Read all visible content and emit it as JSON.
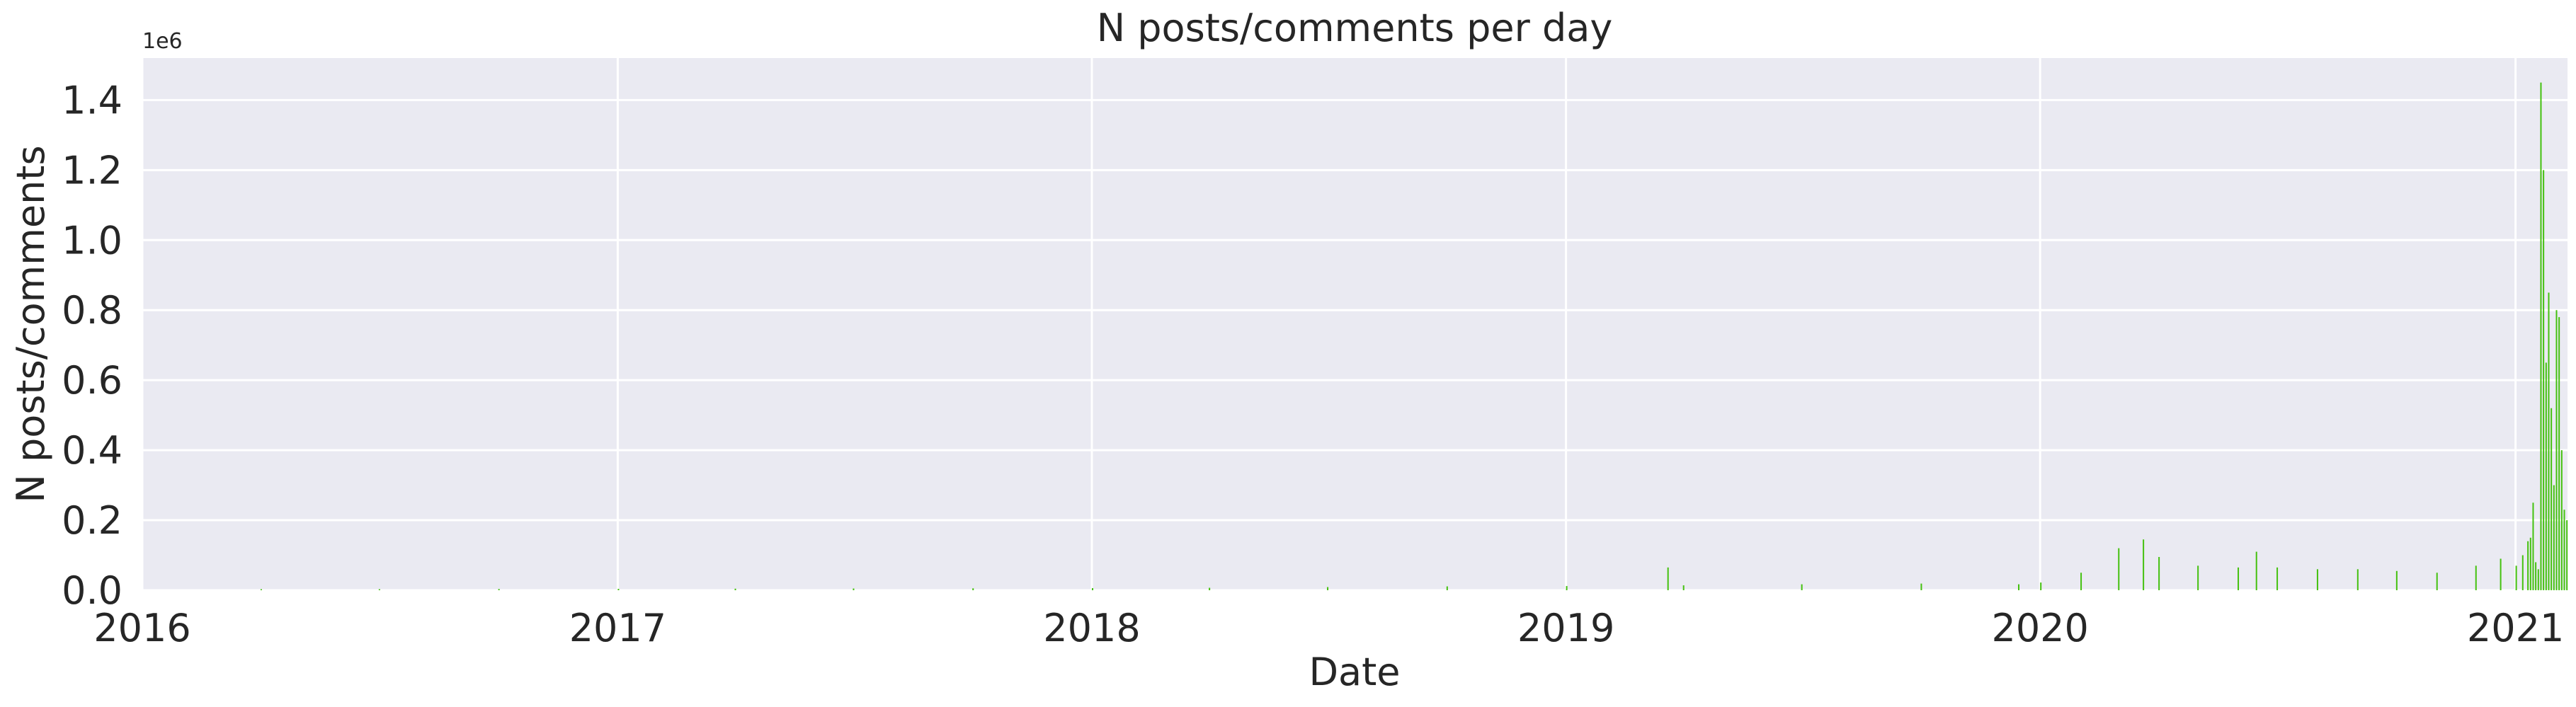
{
  "chart_data": {
    "type": "bar",
    "title": "N posts/comments per day",
    "xlabel": "Date",
    "ylabel": "N posts/comments",
    "y_offset_label": "1e6",
    "y_scale": 1000000,
    "xlim": [
      "2016-01-01",
      "2021-02-10"
    ],
    "ylim": [
      0,
      1520000
    ],
    "x_ticks": [
      {
        "date": "2016-01-01",
        "label": "2016"
      },
      {
        "date": "2017-01-01",
        "label": "2017"
      },
      {
        "date": "2018-01-01",
        "label": "2018"
      },
      {
        "date": "2019-01-01",
        "label": "2019"
      },
      {
        "date": "2020-01-01",
        "label": "2020"
      },
      {
        "date": "2021-01-01",
        "label": "2021"
      }
    ],
    "y_ticks": [
      {
        "value": 0,
        "label": "0.0"
      },
      {
        "value": 200000,
        "label": "0.2"
      },
      {
        "value": 400000,
        "label": "0.4"
      },
      {
        "value": 600000,
        "label": "0.6"
      },
      {
        "value": 800000,
        "label": "0.8"
      },
      {
        "value": 1000000,
        "label": "1.0"
      },
      {
        "value": 1200000,
        "label": "1.2"
      },
      {
        "value": 1400000,
        "label": "1.4"
      }
    ],
    "grid": true,
    "colors": {
      "bars": "#44c10f",
      "plot_background": "#eaeaf2",
      "grid": "#ffffff",
      "text": "#262626"
    },
    "series": [
      {
        "dates": [
          "2016-04-01",
          "2016-07-01",
          "2016-10-01",
          "2017-01-01",
          "2017-04-01",
          "2017-07-01",
          "2017-10-01",
          "2018-01-01",
          "2018-04-01",
          "2018-07-01",
          "2018-10-01",
          "2019-01-01",
          "2019-03-20",
          "2019-04-01",
          "2019-07-01",
          "2019-10-01",
          "2019-12-15",
          "2020-01-01",
          "2020-02-01",
          "2020-03-01",
          "2020-03-20",
          "2020-04-01",
          "2020-05-01",
          "2020-06-01",
          "2020-06-15",
          "2020-07-01",
          "2020-08-01",
          "2020-09-01",
          "2020-10-01",
          "2020-11-01",
          "2020-12-01",
          "2020-12-20",
          "2021-01-01",
          "2021-01-06",
          "2021-01-10",
          "2021-01-12",
          "2021-01-14",
          "2021-01-16",
          "2021-01-18",
          "2021-01-20",
          "2021-01-22",
          "2021-01-24",
          "2021-01-26",
          "2021-01-28",
          "2021-01-30",
          "2021-02-01",
          "2021-02-03",
          "2021-02-05",
          "2021-02-07",
          "2021-02-09"
        ],
        "values": [
          3000,
          3000,
          3500,
          4000,
          4500,
          5000,
          5500,
          6000,
          7000,
          9000,
          11000,
          12000,
          65000,
          14000,
          17000,
          19000,
          17000,
          22000,
          50000,
          120000,
          145000,
          95000,
          70000,
          65000,
          110000,
          65000,
          60000,
          60000,
          55000,
          50000,
          70000,
          90000,
          70000,
          100000,
          140000,
          150000,
          250000,
          80000,
          60000,
          1450000,
          1200000,
          650000,
          850000,
          520000,
          300000,
          800000,
          780000,
          400000,
          230000,
          200000
        ]
      }
    ]
  }
}
